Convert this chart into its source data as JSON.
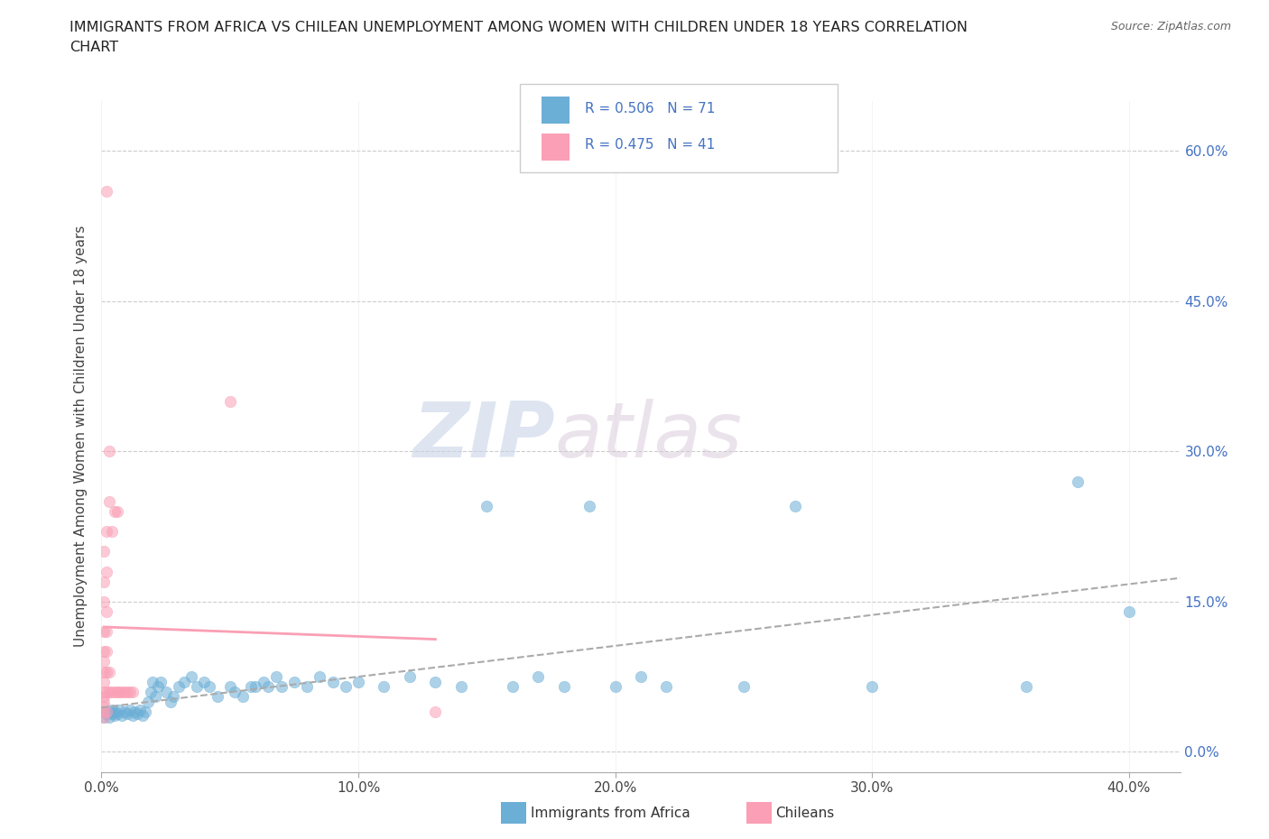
{
  "title_line1": "IMMIGRANTS FROM AFRICA VS CHILEAN UNEMPLOYMENT AMONG WOMEN WITH CHILDREN UNDER 18 YEARS CORRELATION",
  "title_line2": "CHART",
  "source": "Source: ZipAtlas.com",
  "xlabel_ticks": [
    "0.0%",
    "10.0%",
    "20.0%",
    "30.0%",
    "40.0%"
  ],
  "ylabel_ticks": [
    "0.0%",
    "15.0%",
    "30.0%",
    "45.0%",
    "60.0%"
  ],
  "xlim": [
    0.0,
    0.42
  ],
  "ylim": [
    -0.02,
    0.65
  ],
  "ylabel": "Unemployment Among Women with Children Under 18 years",
  "color_africa": "#6baed6",
  "color_chile": "#fa9fb5",
  "watermark_zip": "ZIP",
  "watermark_atlas": "atlas",
  "africa_scatter": [
    [
      0.001,
      0.04
    ],
    [
      0.001,
      0.035
    ],
    [
      0.002,
      0.038
    ],
    [
      0.002,
      0.04
    ],
    [
      0.003,
      0.035
    ],
    [
      0.003,
      0.04
    ],
    [
      0.004,
      0.038
    ],
    [
      0.004,
      0.042
    ],
    [
      0.005,
      0.036
    ],
    [
      0.005,
      0.04
    ],
    [
      0.006,
      0.038
    ],
    [
      0.007,
      0.042
    ],
    [
      0.008,
      0.036
    ],
    [
      0.009,
      0.04
    ],
    [
      0.01,
      0.038
    ],
    [
      0.011,
      0.042
    ],
    [
      0.012,
      0.036
    ],
    [
      0.013,
      0.04
    ],
    [
      0.014,
      0.038
    ],
    [
      0.015,
      0.042
    ],
    [
      0.016,
      0.036
    ],
    [
      0.017,
      0.04
    ],
    [
      0.018,
      0.05
    ],
    [
      0.019,
      0.06
    ],
    [
      0.02,
      0.07
    ],
    [
      0.021,
      0.055
    ],
    [
      0.022,
      0.065
    ],
    [
      0.023,
      0.07
    ],
    [
      0.025,
      0.06
    ],
    [
      0.027,
      0.05
    ],
    [
      0.028,
      0.055
    ],
    [
      0.03,
      0.065
    ],
    [
      0.032,
      0.07
    ],
    [
      0.035,
      0.075
    ],
    [
      0.037,
      0.065
    ],
    [
      0.04,
      0.07
    ],
    [
      0.042,
      0.065
    ],
    [
      0.045,
      0.055
    ],
    [
      0.05,
      0.065
    ],
    [
      0.052,
      0.06
    ],
    [
      0.055,
      0.055
    ],
    [
      0.058,
      0.065
    ],
    [
      0.06,
      0.065
    ],
    [
      0.063,
      0.07
    ],
    [
      0.065,
      0.065
    ],
    [
      0.068,
      0.075
    ],
    [
      0.07,
      0.065
    ],
    [
      0.075,
      0.07
    ],
    [
      0.08,
      0.065
    ],
    [
      0.085,
      0.075
    ],
    [
      0.09,
      0.07
    ],
    [
      0.095,
      0.065
    ],
    [
      0.1,
      0.07
    ],
    [
      0.11,
      0.065
    ],
    [
      0.12,
      0.075
    ],
    [
      0.13,
      0.07
    ],
    [
      0.14,
      0.065
    ],
    [
      0.15,
      0.245
    ],
    [
      0.16,
      0.065
    ],
    [
      0.17,
      0.075
    ],
    [
      0.18,
      0.065
    ],
    [
      0.19,
      0.245
    ],
    [
      0.2,
      0.065
    ],
    [
      0.21,
      0.075
    ],
    [
      0.22,
      0.065
    ],
    [
      0.25,
      0.065
    ],
    [
      0.27,
      0.245
    ],
    [
      0.3,
      0.065
    ],
    [
      0.36,
      0.065
    ],
    [
      0.38,
      0.27
    ],
    [
      0.4,
      0.14
    ]
  ],
  "chile_scatter": [
    [
      0.001,
      0.04
    ],
    [
      0.001,
      0.035
    ],
    [
      0.001,
      0.045
    ],
    [
      0.001,
      0.05
    ],
    [
      0.001,
      0.055
    ],
    [
      0.001,
      0.06
    ],
    [
      0.001,
      0.07
    ],
    [
      0.001,
      0.08
    ],
    [
      0.001,
      0.09
    ],
    [
      0.001,
      0.1
    ],
    [
      0.001,
      0.12
    ],
    [
      0.001,
      0.15
    ],
    [
      0.001,
      0.17
    ],
    [
      0.001,
      0.2
    ],
    [
      0.002,
      0.56
    ],
    [
      0.002,
      0.04
    ],
    [
      0.002,
      0.06
    ],
    [
      0.002,
      0.08
    ],
    [
      0.002,
      0.1
    ],
    [
      0.002,
      0.12
    ],
    [
      0.002,
      0.14
    ],
    [
      0.002,
      0.18
    ],
    [
      0.002,
      0.22
    ],
    [
      0.003,
      0.3
    ],
    [
      0.003,
      0.25
    ],
    [
      0.003,
      0.06
    ],
    [
      0.003,
      0.08
    ],
    [
      0.004,
      0.22
    ],
    [
      0.004,
      0.06
    ],
    [
      0.005,
      0.24
    ],
    [
      0.005,
      0.06
    ],
    [
      0.006,
      0.06
    ],
    [
      0.006,
      0.24
    ],
    [
      0.007,
      0.06
    ],
    [
      0.008,
      0.06
    ],
    [
      0.009,
      0.06
    ],
    [
      0.01,
      0.06
    ],
    [
      0.011,
      0.06
    ],
    [
      0.012,
      0.06
    ],
    [
      0.05,
      0.35
    ],
    [
      0.13,
      0.04
    ]
  ]
}
